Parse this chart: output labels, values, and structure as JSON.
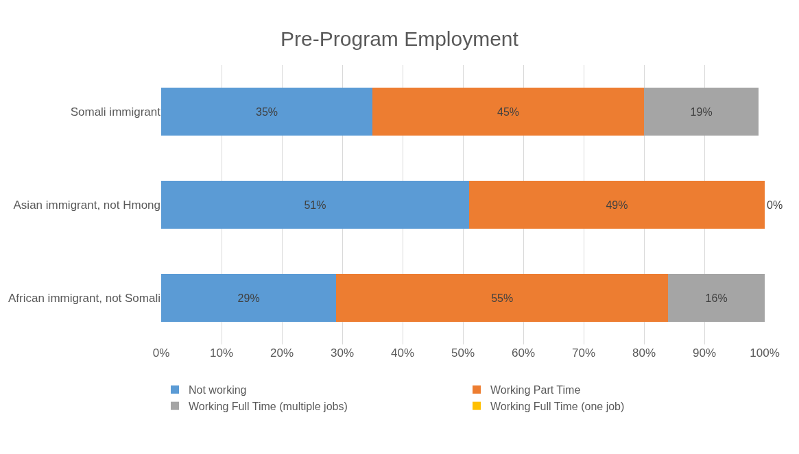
{
  "chart_data": {
    "type": "bar",
    "title": "Pre-Program Employment",
    "orientation": "horizontal",
    "stacked": true,
    "categories": [
      "Somali immigrant",
      "Asian immigrant, not Hmong",
      "African immigrant, not Somali"
    ],
    "series": [
      {
        "name": "Not working",
        "color": "#5b9bd5",
        "values": [
          35,
          51,
          29
        ],
        "value_labels": [
          "35%",
          "51%",
          "29%"
        ]
      },
      {
        "name": "Working Part Time",
        "color": "#ed7d31",
        "values": [
          45,
          49,
          55
        ],
        "value_labels": [
          "45%",
          "49%",
          "55%"
        ]
      },
      {
        "name": "Working Full Time (multiple jobs)",
        "color": "#a5a5a5",
        "values": [
          19,
          0,
          16
        ],
        "value_labels": [
          "19%",
          "0%",
          "16%"
        ]
      },
      {
        "name": "Working Full Time (one job)",
        "color": "#ffc000",
        "values": [
          null,
          null,
          null
        ]
      }
    ],
    "xlim": [
      0,
      100
    ],
    "xticks": [
      {
        "value": 0,
        "label": "0%"
      },
      {
        "value": 10,
        "label": "10%"
      },
      {
        "value": 20,
        "label": "20%"
      },
      {
        "value": 30,
        "label": "30%"
      },
      {
        "value": 40,
        "label": "40%"
      },
      {
        "value": 50,
        "label": "50%"
      },
      {
        "value": 60,
        "label": "60%"
      },
      {
        "value": 70,
        "label": "70%"
      },
      {
        "value": 80,
        "label": "80%"
      },
      {
        "value": 90,
        "label": "90%"
      },
      {
        "value": 100,
        "label": "100%"
      }
    ],
    "grid": "x",
    "legend": "bottom"
  }
}
